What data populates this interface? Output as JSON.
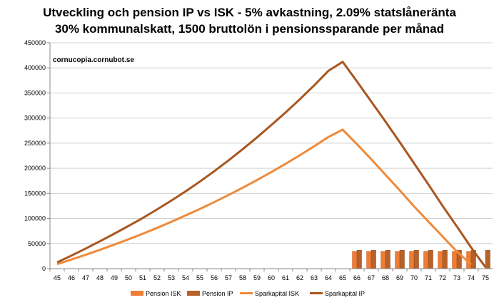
{
  "chart_data": {
    "type": "line",
    "title_line1": "Utveckling och pension IP vs ISK - 5% avkastning, 2.09% statslåneränta",
    "title_line2": "30% kommunalskatt, 1500 bruttolön i pensionssparande per månad",
    "annotation": "cornucopia.cornubot.se",
    "ylim": [
      0,
      450000
    ],
    "y_ticks": [
      0,
      50000,
      100000,
      150000,
      200000,
      250000,
      300000,
      350000,
      400000,
      450000
    ],
    "x": [
      45,
      46,
      47,
      48,
      49,
      50,
      51,
      52,
      53,
      54,
      55,
      56,
      57,
      58,
      59,
      60,
      61,
      62,
      63,
      64,
      65,
      66,
      67,
      68,
      69,
      70,
      71,
      72,
      73,
      74,
      75
    ],
    "grid": true,
    "legend_position": "bottom",
    "colors": {
      "pension_isk": "#ee7d36",
      "pension_ip": "#b8612a",
      "sparkapital_isk": "#ee8a3a",
      "sparkapital_ip": "#a9561f"
    },
    "series": [
      {
        "name": "Pension ISK",
        "kind": "bar",
        "values": [
          null,
          null,
          null,
          null,
          null,
          null,
          null,
          null,
          null,
          null,
          null,
          null,
          null,
          null,
          null,
          null,
          null,
          null,
          null,
          null,
          null,
          34500,
          34500,
          34500,
          34500,
          34500,
          34500,
          34500,
          34500,
          34500,
          null
        ]
      },
      {
        "name": "Pension IP",
        "kind": "bar",
        "values": [
          null,
          null,
          null,
          null,
          null,
          null,
          null,
          null,
          null,
          null,
          null,
          null,
          null,
          null,
          null,
          null,
          null,
          null,
          null,
          null,
          null,
          36500,
          36500,
          36500,
          36500,
          36500,
          36500,
          36500,
          36500,
          36500,
          36500
        ]
      },
      {
        "name": "Sparkapital ISK",
        "kind": "line",
        "values": [
          9000,
          18200,
          27600,
          37500,
          47800,
          58500,
          69600,
          81200,
          93300,
          106000,
          119000,
          132500,
          146600,
          161200,
          176500,
          192300,
          208800,
          225900,
          243700,
          262200,
          277000,
          248000,
          218000,
          187000,
          156000,
          124000,
          94000,
          64000,
          34000,
          8000,
          null
        ]
      },
      {
        "name": "Sparkapital IP",
        "kind": "line",
        "values": [
          12500,
          26000,
          40000,
          54500,
          69500,
          85000,
          101000,
          118000,
          135500,
          154000,
          173500,
          194000,
          215500,
          238000,
          261500,
          286000,
          311000,
          337500,
          365000,
          394000,
          412000,
          373000,
          333000,
          293000,
          252000,
          210000,
          168000,
          125000,
          84000,
          42000,
          3000
        ]
      }
    ]
  }
}
